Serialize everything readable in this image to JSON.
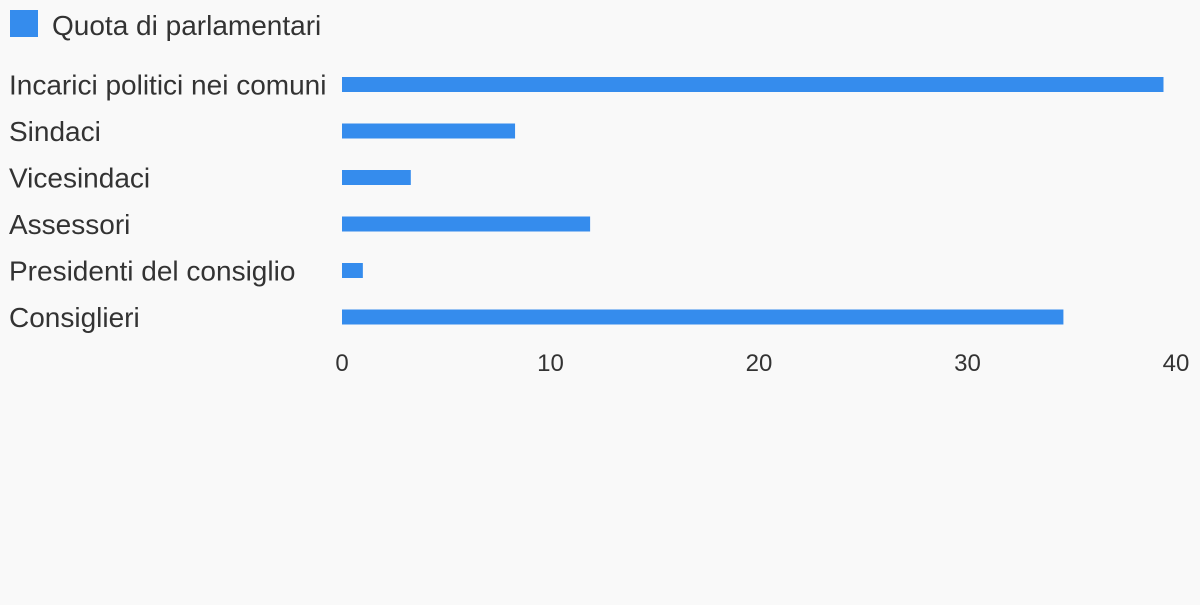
{
  "colors": {
    "background": "#f9f9f9",
    "bar": "#358ced",
    "text": "#333333"
  },
  "chart_data": {
    "type": "bar",
    "orientation": "horizontal",
    "categories": [
      "Incarici politici nei comuni",
      "Sindaci",
      "Vicesindaci",
      "Assessori",
      "Presidenti del consiglio",
      "Consiglieri"
    ],
    "series": [
      {
        "name": "Quota di parlamentari",
        "values": [
          39.4,
          8.3,
          3.3,
          11.9,
          1.0,
          34.6
        ]
      }
    ],
    "xlim": [
      0,
      40
    ],
    "xticks": [
      0,
      10,
      20,
      30,
      40
    ],
    "legend": "top-left",
    "grid": false
  }
}
